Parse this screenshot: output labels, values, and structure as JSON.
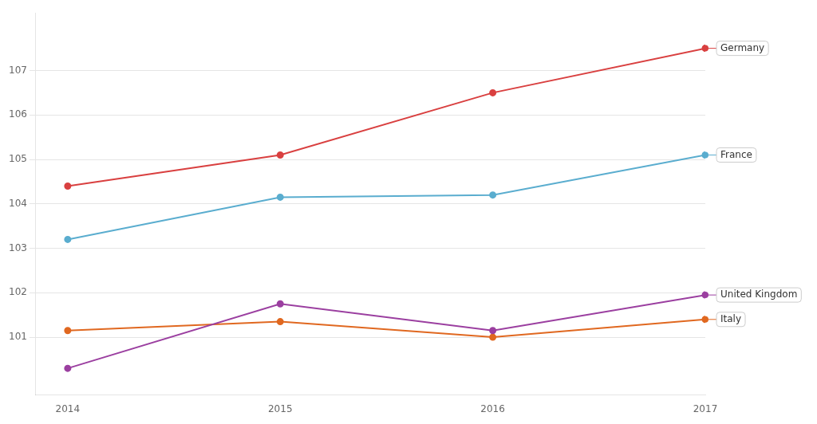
{
  "chart_data": {
    "type": "line",
    "x": [
      2014,
      2015,
      2016,
      2017
    ],
    "series": [
      {
        "name": "Germany",
        "color": "#d94040",
        "values": [
          104.4,
          105.1,
          106.5,
          107.5
        ]
      },
      {
        "name": "France",
        "color": "#5aadcf",
        "values": [
          103.2,
          104.15,
          104.2,
          105.1
        ]
      },
      {
        "name": "United Kingdom",
        "color": "#9b3fa0",
        "values": [
          100.3,
          101.75,
          101.15,
          101.95
        ]
      },
      {
        "name": "Italy",
        "color": "#e06820",
        "values": [
          101.15,
          101.35,
          101.0,
          101.4
        ]
      }
    ],
    "xlim": [
      2013.85,
      2017
    ],
    "ylim": [
      99.7,
      108.3
    ],
    "xticks": [
      2014,
      2015,
      2016,
      2017
    ],
    "yticks": [
      101,
      102,
      103,
      104,
      105,
      106,
      107
    ],
    "grid": "y",
    "marker": "circle"
  }
}
